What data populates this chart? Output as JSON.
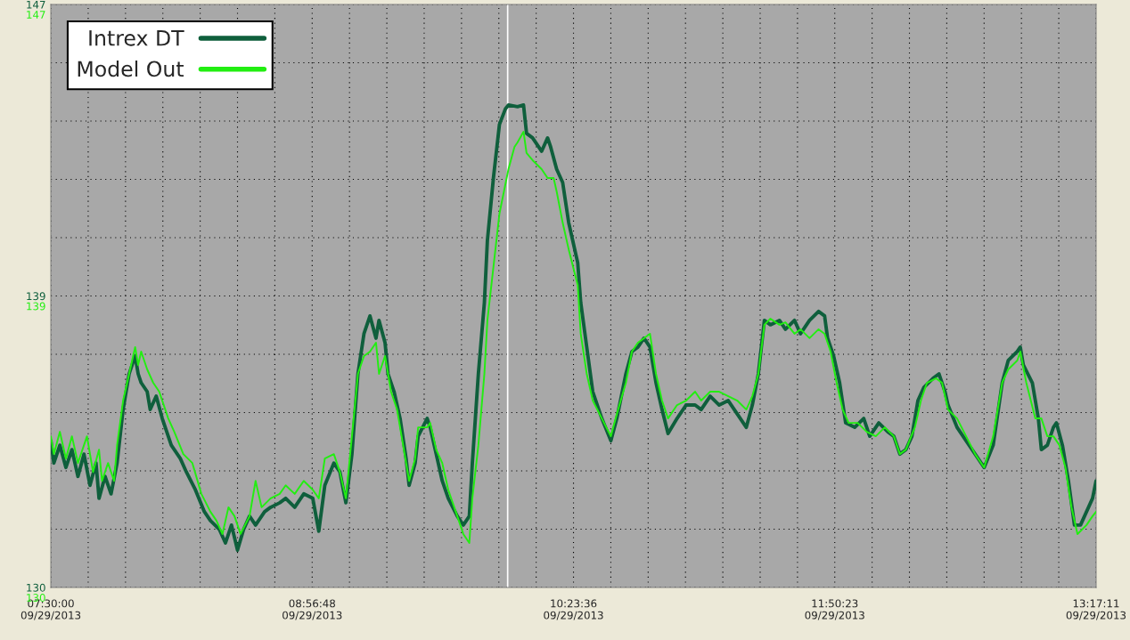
{
  "chart_data": {
    "type": "line",
    "xlim": [
      "2013-09-29T07:30:00",
      "2013-09-29T13:17:11"
    ],
    "ylim": [
      130,
      147
    ],
    "xticks": [
      {
        "value": "2013-09-29T07:30:00",
        "label": "07:30:00\n09/29/2013"
      },
      {
        "value": "2013-09-29T07:42:24",
        "label": null
      },
      {
        "value": "2013-09-29T07:54:48",
        "label": null
      },
      {
        "value": "2013-09-29T08:07:12",
        "label": null
      },
      {
        "value": "2013-09-29T08:19:36",
        "label": null
      },
      {
        "value": "2013-09-29T08:32:00",
        "label": null
      },
      {
        "value": "2013-09-29T08:44:24",
        "label": null
      },
      {
        "value": "2013-09-29T08:56:48",
        "label": "08:56:48\n09/29/2013"
      },
      {
        "value": "2013-09-29T09:09:12",
        "label": null
      },
      {
        "value": "2013-09-29T09:21:36",
        "label": null
      },
      {
        "value": "2013-09-29T09:34:00",
        "label": null
      },
      {
        "value": "2013-09-29T09:46:24",
        "label": null
      },
      {
        "value": "2013-09-29T09:58:48",
        "label": null
      },
      {
        "value": "2013-09-29T10:11:12",
        "label": null
      },
      {
        "value": "2013-09-29T10:23:36",
        "label": "10:23:36\n09/29/2013"
      },
      {
        "value": "2013-09-29T10:36:00",
        "label": null
      },
      {
        "value": "2013-09-29T10:48:24",
        "label": null
      },
      {
        "value": "2013-09-29T11:00:48",
        "label": null
      },
      {
        "value": "2013-09-29T11:13:12",
        "label": null
      },
      {
        "value": "2013-09-29T11:25:36",
        "label": null
      },
      {
        "value": "2013-09-29T11:38:00",
        "label": null
      },
      {
        "value": "2013-09-29T11:50:23",
        "label": "11:50:23\n09/29/2013"
      },
      {
        "value": "2013-09-29T12:02:47",
        "label": null
      },
      {
        "value": "2013-09-29T12:15:11",
        "label": null
      },
      {
        "value": "2013-09-29T12:27:35",
        "label": null
      },
      {
        "value": "2013-09-29T12:39:59",
        "label": null
      },
      {
        "value": "2013-09-29T12:52:23",
        "label": null
      },
      {
        "value": "2013-09-29T13:04:47",
        "label": null
      },
      {
        "value": "2013-09-29T13:17:11",
        "label": "13:17:11\n09/29/2013"
      }
    ],
    "yticks": [
      {
        "value": 130,
        "label": "130"
      },
      {
        "value": 131.7,
        "label": null
      },
      {
        "value": 133.4,
        "label": null
      },
      {
        "value": 135.1,
        "label": null
      },
      {
        "value": 136.8,
        "label": null
      },
      {
        "value": 138.5,
        "label": "139"
      },
      {
        "value": 140.2,
        "label": null
      },
      {
        "value": 141.9,
        "label": null
      },
      {
        "value": 143.6,
        "label": null
      },
      {
        "value": 145.3,
        "label": null
      },
      {
        "value": 147,
        "label": "147"
      }
    ],
    "grid": true,
    "legend": "top left",
    "line_style": "solid",
    "marker": "none",
    "ref_lines": [
      {
        "axis": "x",
        "value": "2013-09-29T10:01:44",
        "color": "#ffffff",
        "line_style": "solid"
      }
    ],
    "series": [
      {
        "name": "Intrex DT",
        "color": "#0f5f3c",
        "x": [
          "2013-09-29T07:30",
          "2013-09-29T07:31",
          "2013-09-29T07:33",
          "2013-09-29T07:35",
          "2013-09-29T07:37",
          "2013-09-29T07:39",
          "2013-09-29T07:41",
          "2013-09-29T07:43",
          "2013-09-29T07:45",
          "2013-09-29T07:46",
          "2013-09-29T07:48",
          "2013-09-29T07:50",
          "2013-09-29T07:52",
          "2013-09-29T07:54",
          "2013-09-29T07:56",
          "2013-09-29T07:58",
          "2013-09-29T07:59",
          "2013-09-29T08:00",
          "2013-09-29T08:02",
          "2013-09-29T08:03",
          "2013-09-29T08:05",
          "2013-09-29T08:07",
          "2013-09-29T08:10",
          "2013-09-29T08:13",
          "2013-09-29T08:15",
          "2013-09-29T08:18",
          "2013-09-29T08:21",
          "2013-09-29T08:23",
          "2013-09-29T08:26",
          "2013-09-29T08:28",
          "2013-09-29T08:30",
          "2013-09-29T08:32",
          "2013-09-29T08:34",
          "2013-09-29T08:36",
          "2013-09-29T08:38",
          "2013-09-29T08:41",
          "2013-09-29T08:43",
          "2013-09-29T08:46",
          "2013-09-29T08:48",
          "2013-09-29T08:51",
          "2013-09-29T08:54",
          "2013-09-29T08:57",
          "2013-09-29T08:59",
          "2013-09-29T09:01",
          "2013-09-29T09:04",
          "2013-09-29T09:06",
          "2013-09-29T09:08",
          "2013-09-29T09:10",
          "2013-09-29T09:12",
          "2013-09-29T09:14",
          "2013-09-29T09:16",
          "2013-09-29T09:18",
          "2013-09-29T09:19",
          "2013-09-29T09:21",
          "2013-09-29T09:22",
          "2013-09-29T09:24",
          "2013-09-29T09:26",
          "2013-09-29T09:28",
          "2013-09-29T09:29",
          "2013-09-29T09:31",
          "2013-09-29T09:32",
          "2013-09-29T09:35",
          "2013-09-29T09:36",
          "2013-09-29T09:38",
          "2013-09-29T09:40",
          "2013-09-29T09:42",
          "2013-09-29T09:45",
          "2013-09-29T09:47",
          "2013-09-29T09:49",
          "2013-09-29T09:50",
          "2013-09-29T09:52",
          "2013-09-29T09:54",
          "2013-09-29T09:55",
          "2013-09-29T09:57",
          "2013-09-29T09:59",
          "2013-09-29T10:01",
          "2013-09-29T10:02",
          "2013-09-29T10:05",
          "2013-09-29T10:07",
          "2013-09-29T10:08",
          "2013-09-29T10:10",
          "2013-09-29T10:13",
          "2013-09-29T10:15",
          "2013-09-29T10:16",
          "2013-09-29T10:18",
          "2013-09-29T10:20",
          "2013-09-29T10:22",
          "2013-09-29T10:25",
          "2013-09-29T10:26",
          "2013-09-29T10:28",
          "2013-09-29T10:30",
          "2013-09-29T10:33",
          "2013-09-29T10:36",
          "2013-09-29T10:38",
          "2013-09-29T10:41",
          "2013-09-29T10:43",
          "2013-09-29T10:45",
          "2013-09-29T10:47",
          "2013-09-29T10:49",
          "2013-09-29T10:51",
          "2013-09-29T10:53",
          "2013-09-29T10:55",
          "2013-09-29T10:58",
          "2013-09-29T11:01",
          "2013-09-29T11:04",
          "2013-09-29T11:06",
          "2013-09-29T11:09",
          "2013-09-29T11:12",
          "2013-09-29T11:15",
          "2013-09-29T11:18",
          "2013-09-29T11:21",
          "2013-09-29T11:23",
          "2013-09-29T11:25",
          "2013-09-29T11:27",
          "2013-09-29T11:29",
          "2013-09-29T11:32",
          "2013-09-29T11:34",
          "2013-09-29T11:37",
          "2013-09-29T11:39",
          "2013-09-29T11:42",
          "2013-09-29T11:45",
          "2013-09-29T11:47",
          "2013-09-29T11:48",
          "2013-09-29T11:50",
          "2013-09-29T11:52",
          "2013-09-29T11:54",
          "2013-09-29T11:57",
          "2013-09-29T12:00",
          "2013-09-29T12:02",
          "2013-09-29T12:05",
          "2013-09-29T12:08",
          "2013-09-29T12:10",
          "2013-09-29T12:12",
          "2013-09-29T12:14",
          "2013-09-29T12:16",
          "2013-09-29T12:18",
          "2013-09-29T12:20",
          "2013-09-29T12:23",
          "2013-09-29T12:25",
          "2013-09-29T12:27",
          "2013-09-29T12:28",
          "2013-09-29T12:31",
          "2013-09-29T12:33",
          "2013-09-29T12:36",
          "2013-09-29T12:40",
          "2013-09-29T12:43",
          "2013-09-29T12:46",
          "2013-09-29T12:48",
          "2013-09-29T12:51",
          "2013-09-29T12:52",
          "2013-09-29T12:53",
          "2013-09-29T12:56",
          "2013-09-29T12:58",
          "2013-09-29T12:59",
          "2013-09-29T13:01",
          "2013-09-29T13:03",
          "2013-09-29T13:04",
          "2013-09-29T13:06",
          "2013-09-29T13:08",
          "2013-09-29T13:10",
          "2013-09-29T13:12",
          "2013-09-29T13:14",
          "2013-09-29T13:16",
          "2013-09-29T13:17:11"
        ],
        "values": [
          134.28,
          133.63,
          134.15,
          133.5,
          134.02,
          133.24,
          133.89,
          132.98,
          133.63,
          132.6,
          133.24,
          132.73,
          133.63,
          135.19,
          136.23,
          136.75,
          136.23,
          135.97,
          135.71,
          135.19,
          135.58,
          134.93,
          134.15,
          133.76,
          133.37,
          132.85,
          132.21,
          131.95,
          131.69,
          131.3,
          131.82,
          131.09,
          131.69,
          132.08,
          131.82,
          132.21,
          132.34,
          132.47,
          132.6,
          132.34,
          132.73,
          132.6,
          131.64,
          132.98,
          133.63,
          133.37,
          132.47,
          133.89,
          136.23,
          137.4,
          137.92,
          137.27,
          137.79,
          137.14,
          136.23,
          135.71,
          134.93,
          133.76,
          132.98,
          133.63,
          134.41,
          134.93,
          134.67,
          133.89,
          133.11,
          132.6,
          132.08,
          131.82,
          132.08,
          133.63,
          136.23,
          138.31,
          140.12,
          141.94,
          143.5,
          143.96,
          144.07,
          144.02,
          144.07,
          143.24,
          143.11,
          142.72,
          143.11,
          142.85,
          142.2,
          141.81,
          140.64,
          139.47,
          138.31,
          137.01,
          135.71,
          134.93,
          134.28,
          134.93,
          136.23,
          136.88,
          137.01,
          137.27,
          137.01,
          135.97,
          135.19,
          134.49,
          134.93,
          135.32,
          135.32,
          135.19,
          135.58,
          135.32,
          135.45,
          135.06,
          134.67,
          135.32,
          136.23,
          137.79,
          137.66,
          137.79,
          137.53,
          137.79,
          137.4,
          137.79,
          138.05,
          137.92,
          137.27,
          136.75,
          135.97,
          134.8,
          134.67,
          134.93,
          134.41,
          134.8,
          134.54,
          134.41,
          133.89,
          134.02,
          134.41,
          135.45,
          135.84,
          136.1,
          136.23,
          135.71,
          135.32,
          134.67,
          134.41,
          134.02,
          133.5,
          134.15,
          135.97,
          136.62,
          136.88,
          137.01,
          136.49,
          135.97,
          134.93,
          134.02,
          134.15,
          134.67,
          134.8,
          134.15,
          133.11,
          131.82,
          131.82,
          132.21,
          132.6,
          133.11
        ]
      },
      {
        "name": "Model Out",
        "color": "#22ee11",
        "x": [
          "2013-09-29T07:30",
          "2013-09-29T07:31",
          "2013-09-29T07:33",
          "2013-09-29T07:35",
          "2013-09-29T07:37",
          "2013-09-29T07:39",
          "2013-09-29T07:42",
          "2013-09-29T07:44",
          "2013-09-29T07:46",
          "2013-09-29T07:47",
          "2013-09-29T07:49",
          "2013-09-29T07:51",
          "2013-09-29T07:52",
          "2013-09-29T07:54",
          "2013-09-29T07:56",
          "2013-09-29T07:58",
          "2013-09-29T07:59",
          "2013-09-29T08:00",
          "2013-09-29T08:02",
          "2013-09-29T08:04",
          "2013-09-29T08:06",
          "2013-09-29T08:09",
          "2013-09-29T08:11",
          "2013-09-29T08:14",
          "2013-09-29T08:17",
          "2013-09-29T08:20",
          "2013-09-29T08:23",
          "2013-09-29T08:25",
          "2013-09-29T08:27",
          "2013-09-29T08:29",
          "2013-09-29T08:31",
          "2013-09-29T08:33",
          "2013-09-29T08:36",
          "2013-09-29T08:38",
          "2013-09-29T08:40",
          "2013-09-29T08:43",
          "2013-09-29T08:46",
          "2013-09-29T08:48",
          "2013-09-29T08:51",
          "2013-09-29T08:54",
          "2013-09-29T08:57",
          "2013-09-29T08:59",
          "2013-09-29T09:01",
          "2013-09-29T09:04",
          "2013-09-29T09:06",
          "2013-09-29T09:08",
          "2013-09-29T09:10",
          "2013-09-29T09:12",
          "2013-09-29T09:14",
          "2013-09-29T09:16",
          "2013-09-29T09:18",
          "2013-09-29T09:19",
          "2013-09-29T09:21",
          "2013-09-29T09:23",
          "2013-09-29T09:25",
          "2013-09-29T09:27",
          "2013-09-29T09:29",
          "2013-09-29T09:31",
          "2013-09-29T09:32",
          "2013-09-29T09:35",
          "2013-09-29T09:36",
          "2013-09-29T09:38",
          "2013-09-29T09:40",
          "2013-09-29T09:42",
          "2013-09-29T09:45",
          "2013-09-29T09:47",
          "2013-09-29T09:49",
          "2013-09-29T09:50",
          "2013-09-29T09:52",
          "2013-09-29T09:54",
          "2013-09-29T09:55",
          "2013-09-29T09:57",
          "2013-09-29T09:59",
          "2013-09-29T10:02",
          "2013-09-29T10:04",
          "2013-09-29T10:05",
          "2013-09-29T10:07",
          "2013-09-29T10:08",
          "2013-09-29T10:10",
          "2013-09-29T10:13",
          "2013-09-29T10:15",
          "2013-09-29T10:17",
          "2013-09-29T10:18",
          "2013-09-29T10:20",
          "2013-09-29T10:22",
          "2013-09-29T10:25",
          "2013-09-29T10:26",
          "2013-09-29T10:28",
          "2013-09-29T10:30",
          "2013-09-29T10:33",
          "2013-09-29T10:36",
          "2013-09-29T10:38",
          "2013-09-29T10:41",
          "2013-09-29T10:43",
          "2013-09-29T10:45",
          "2013-09-29T10:47",
          "2013-09-29T10:49",
          "2013-09-29T10:51",
          "2013-09-29T10:53",
          "2013-09-29T10:55",
          "2013-09-29T10:58",
          "2013-09-29T11:01",
          "2013-09-29T11:04",
          "2013-09-29T11:06",
          "2013-09-29T11:09",
          "2013-09-29T11:12",
          "2013-09-29T11:15",
          "2013-09-29T11:18",
          "2013-09-29T11:21",
          "2013-09-29T11:23",
          "2013-09-29T11:25",
          "2013-09-29T11:27",
          "2013-09-29T11:29",
          "2013-09-29T11:32",
          "2013-09-29T11:34",
          "2013-09-29T11:37",
          "2013-09-29T11:39",
          "2013-09-29T11:42",
          "2013-09-29T11:45",
          "2013-09-29T11:47",
          "2013-09-29T11:49",
          "2013-09-29T11:51",
          "2013-09-29T11:53",
          "2013-09-29T11:55",
          "2013-09-29T11:58",
          "2013-09-29T12:01",
          "2013-09-29T12:04",
          "2013-09-29T12:07",
          "2013-09-29T12:10",
          "2013-09-29T12:12",
          "2013-09-29T12:14",
          "2013-09-29T12:17",
          "2013-09-29T12:19",
          "2013-09-29T12:21",
          "2013-09-29T12:24",
          "2013-09-29T12:26",
          "2013-09-29T12:28",
          "2013-09-29T12:31",
          "2013-09-29T12:34",
          "2013-09-29T12:37",
          "2013-09-29T12:40",
          "2013-09-29T12:43",
          "2013-09-29T12:46",
          "2013-09-29T12:48",
          "2013-09-29T12:51",
          "2013-09-29T12:52",
          "2013-09-29T12:54",
          "2013-09-29T12:57",
          "2013-09-29T12:59",
          "2013-09-29T13:01",
          "2013-09-29T13:03",
          "2013-09-29T13:05",
          "2013-09-29T13:07",
          "2013-09-29T13:09",
          "2013-09-29T13:11",
          "2013-09-29T13:14",
          "2013-09-29T13:16",
          "2013-09-29T13:17:11"
        ],
        "values": [
          134.41,
          133.89,
          134.54,
          133.76,
          134.41,
          133.63,
          134.41,
          133.37,
          134.02,
          133.11,
          133.63,
          133.11,
          134.15,
          135.45,
          136.23,
          137.01,
          136.49,
          136.88,
          136.36,
          135.97,
          135.71,
          134.93,
          134.54,
          133.89,
          133.63,
          132.73,
          132.21,
          131.95,
          131.56,
          132.34,
          132.08,
          131.56,
          132.08,
          133.11,
          132.34,
          132.6,
          132.73,
          132.98,
          132.73,
          133.11,
          132.85,
          132.6,
          133.76,
          133.89,
          133.37,
          132.6,
          134.41,
          136.23,
          136.75,
          136.88,
          137.14,
          136.23,
          136.75,
          135.71,
          135.19,
          134.15,
          133.11,
          133.76,
          134.67,
          134.67,
          134.8,
          134.02,
          133.63,
          132.85,
          132.08,
          131.56,
          131.3,
          132.6,
          134.15,
          136.23,
          137.79,
          139.34,
          140.9,
          142.2,
          142.85,
          142.98,
          143.29,
          142.67,
          142.46,
          142.2,
          141.94,
          141.94,
          141.55,
          140.64,
          139.86,
          138.82,
          137.4,
          136.23,
          135.45,
          134.93,
          134.41,
          135.06,
          135.97,
          136.88,
          137.14,
          137.27,
          137.4,
          136.23,
          135.45,
          134.93,
          135.32,
          135.45,
          135.71,
          135.45,
          135.71,
          135.71,
          135.58,
          135.45,
          135.19,
          135.58,
          136.23,
          137.66,
          137.84,
          137.66,
          137.73,
          137.4,
          137.53,
          137.27,
          137.53,
          137.4,
          136.88,
          135.97,
          135.19,
          134.8,
          134.8,
          134.54,
          134.41,
          134.67,
          134.41,
          133.89,
          134.02,
          134.67,
          135.45,
          135.97,
          136.1,
          135.97,
          135.19,
          134.93,
          134.41,
          133.89,
          133.5,
          134.41,
          135.97,
          136.36,
          136.62,
          136.88,
          135.97,
          134.93,
          134.93,
          134.41,
          134.41,
          134.15,
          133.5,
          132.34,
          131.56,
          131.82,
          132.08,
          132.21
        ]
      }
    ]
  }
}
